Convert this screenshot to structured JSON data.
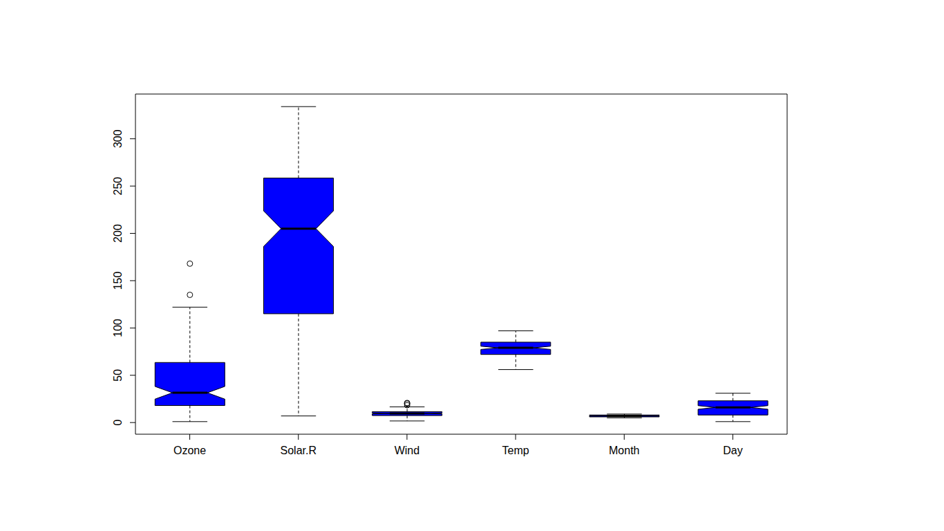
{
  "chart_data": {
    "type": "boxplot",
    "categories": [
      "Ozone",
      "Solar.R",
      "Wind",
      "Temp",
      "Month",
      "Day"
    ],
    "color": "#0000ff",
    "ylim": [
      -12.3,
      347.3
    ],
    "yticks": [
      0,
      50,
      100,
      150,
      200,
      250,
      300
    ],
    "boxes": [
      {
        "min": 1,
        "q1": 18,
        "median": 31.5,
        "q3": 63.5,
        "max": 122,
        "notch_lo": 24.8,
        "notch_hi": 38.2,
        "outliers": [
          135,
          168
        ]
      },
      {
        "min": 7,
        "q1": 115,
        "median": 205,
        "q3": 258.5,
        "max": 334,
        "notch_lo": 186.2,
        "notch_hi": 223.8,
        "outliers": []
      },
      {
        "min": 1.7,
        "q1": 7.4,
        "median": 9.7,
        "q3": 11.5,
        "max": 16.6,
        "notch_lo": 9.2,
        "notch_hi": 10.2,
        "outliers": [
          18.4,
          20.1,
          20.7
        ]
      },
      {
        "min": 56,
        "q1": 72,
        "median": 79,
        "q3": 85,
        "max": 97,
        "notch_lo": 77.3,
        "notch_hi": 80.7,
        "outliers": []
      },
      {
        "min": 5,
        "q1": 6,
        "median": 7,
        "q3": 8,
        "max": 9,
        "notch_lo": 6.74,
        "notch_hi": 7.26,
        "outliers": []
      },
      {
        "min": 1,
        "q1": 8,
        "median": 16,
        "q3": 23,
        "max": 31,
        "notch_lo": 14.1,
        "notch_hi": 17.9,
        "outliers": []
      }
    ]
  }
}
